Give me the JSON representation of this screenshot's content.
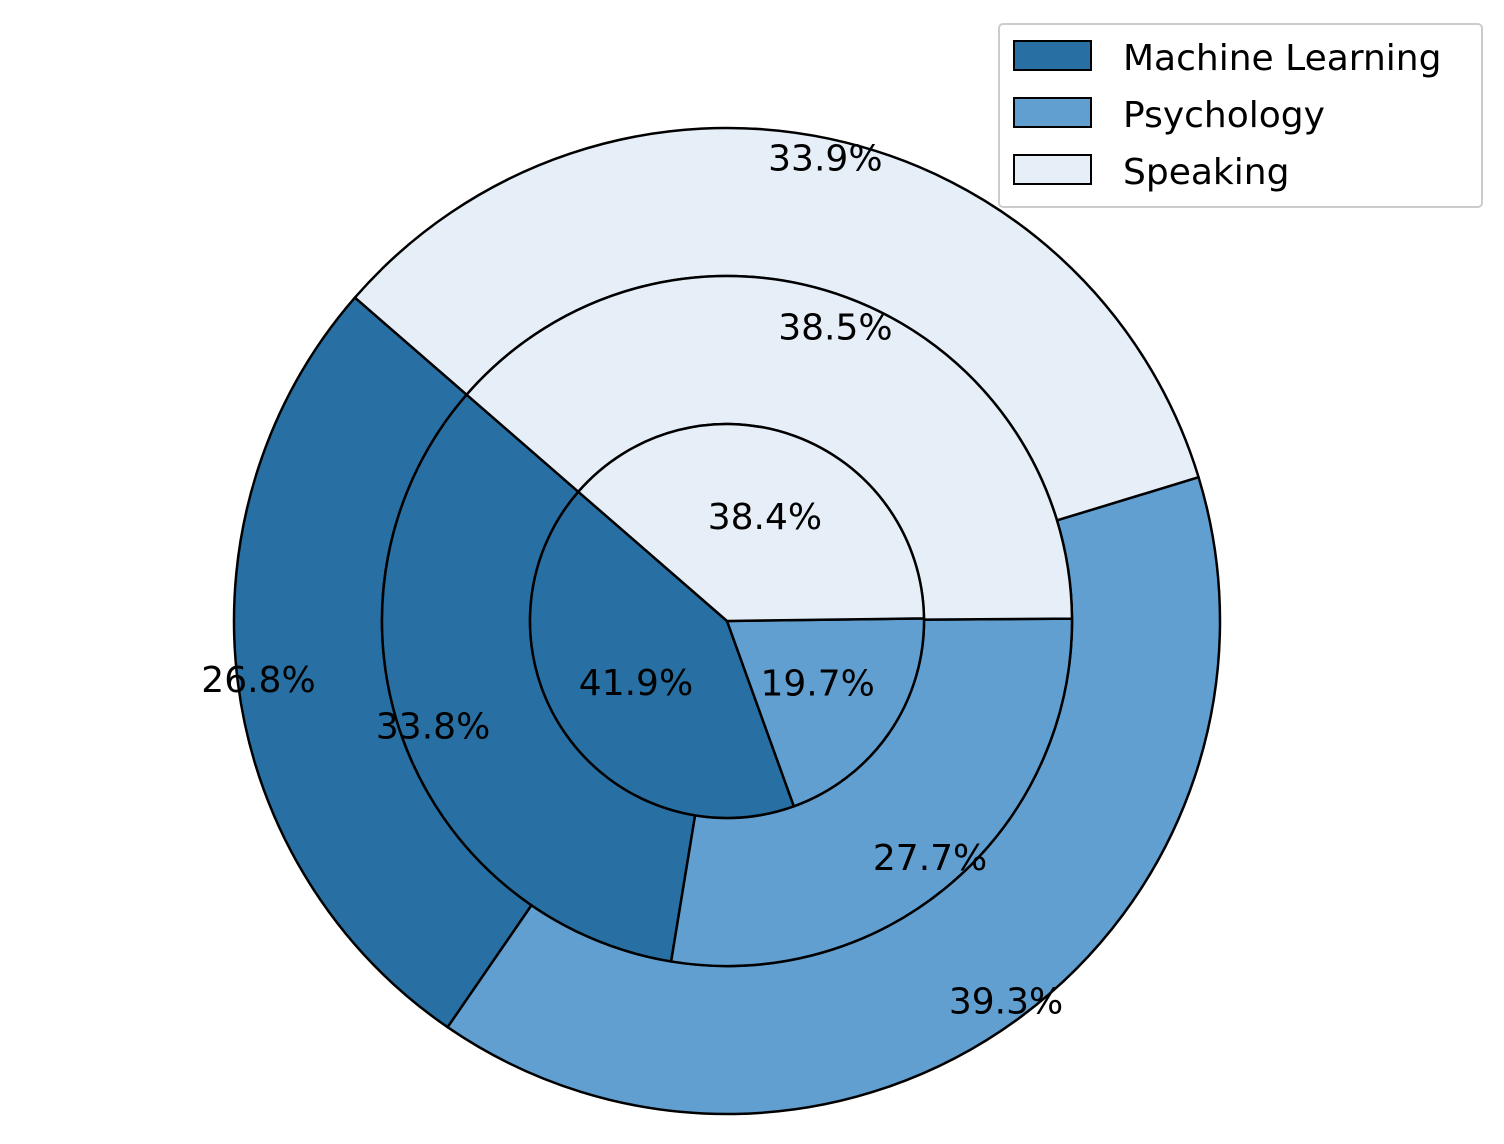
{
  "chart_data": {
    "type": "pie",
    "variant": "nested-donut",
    "title": "",
    "categories": [
      "Machine Learning",
      "Psychology",
      "Speaking"
    ],
    "colors": {
      "Machine Learning": "#2870a3",
      "Psychology": "#619fd0",
      "Speaking": "#e6eef8"
    },
    "rings": [
      {
        "ring": "inner",
        "values": [
          41.9,
          19.7,
          38.4
        ],
        "labels": [
          "41.9%",
          "19.7%",
          "38.4%"
        ]
      },
      {
        "ring": "middle",
        "values": [
          33.8,
          27.7,
          38.5
        ],
        "labels": [
          "33.8%",
          "27.7%",
          "38.5%"
        ]
      },
      {
        "ring": "outer",
        "values": [
          26.8,
          39.3,
          33.9
        ],
        "labels": [
          "26.8%",
          "39.3%",
          "33.9%"
        ]
      }
    ],
    "legend": {
      "position": "top-right",
      "entries": [
        "Machine Learning",
        "Psychology",
        "Speaking"
      ]
    },
    "edge_color": "#000000"
  }
}
